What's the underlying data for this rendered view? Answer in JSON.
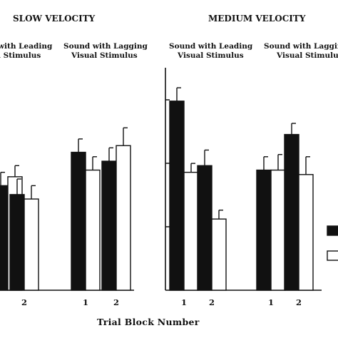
{
  "chart_data": {
    "type": "bar",
    "xlabel": "Trial Block Number",
    "ylabel": "",
    "ylim": [
      0,
      100
    ],
    "grid": false,
    "legend": "right",
    "series": [
      {
        "name": "",
        "color": "#111111"
      },
      {
        "name": "",
        "color": "#ffffff"
      }
    ],
    "panels": [
      {
        "title": "SLOW VELOCITY",
        "groups": [
          {
            "label_line1": "with Leading",
            "label_line2": "l Stimulus",
            "trial_blocks": [
              {
                "label": "",
                "values": [
                  47,
                  51
                ],
                "errors": [
                  6,
                  5
                ]
              },
              {
                "label": "2",
                "values": [
                  43,
                  41
                ],
                "errors": [
                  7,
                  6
                ]
              }
            ]
          },
          {
            "label_line1": "Sound with Lagging",
            "label_line2": "Visual Stimulus",
            "trial_blocks": [
              {
                "label": "1",
                "values": [
                  62,
                  54
                ],
                "errors": [
                  6,
                  6
                ]
              },
              {
                "label": "2",
                "values": [
                  58,
                  65
                ],
                "errors": [
                  6,
                  8
                ]
              }
            ]
          }
        ]
      },
      {
        "title": "MEDIUM VELOCITY",
        "groups": [
          {
            "label_line1": "Sound with Leading",
            "label_line2": "Visual Stimulus",
            "trial_blocks": [
              {
                "label": "1",
                "values": [
                  85,
                  53
                ],
                "errors": [
                  6,
                  4
                ]
              },
              {
                "label": "2",
                "values": [
                  56,
                  32
                ],
                "errors": [
                  7,
                  4
                ]
              }
            ]
          },
          {
            "label_line1": "Sound with Lagging",
            "label_line2": "Visual Stimulus",
            "trial_blocks": [
              {
                "label": "1",
                "values": [
                  54,
                  54
                ],
                "errors": [
                  6,
                  7
                ]
              },
              {
                "label": "2",
                "values": [
                  70,
                  52
                ],
                "errors": [
                  5,
                  8
                ]
              }
            ]
          }
        ]
      }
    ]
  }
}
